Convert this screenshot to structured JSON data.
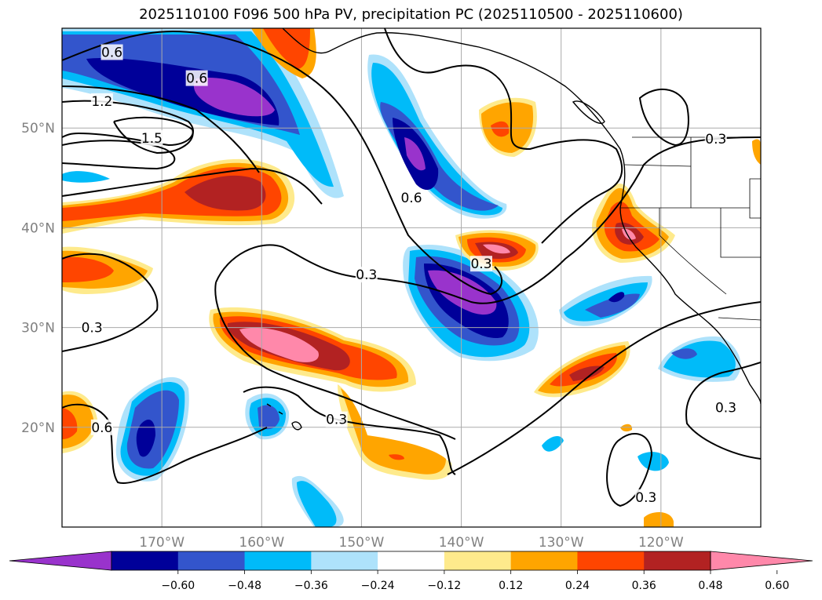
{
  "title": "2025110100 F096 500 hPa PV, precipitation PC (2025110500 - 2025110600)",
  "map": {
    "lon_range": [
      -180,
      -110
    ],
    "lat_range": [
      10,
      60
    ],
    "lon_ticks": [
      {
        "lon": -170,
        "label": "170°W"
      },
      {
        "lon": -160,
        "label": "160°W"
      },
      {
        "lon": -150,
        "label": "150°W"
      },
      {
        "lon": -140,
        "label": "140°W"
      },
      {
        "lon": -130,
        "label": "130°W"
      },
      {
        "lon": -120,
        "label": "120°W"
      }
    ],
    "lat_ticks": [
      {
        "lat": 50,
        "label": "50°N"
      },
      {
        "lat": 40,
        "label": "40°N"
      },
      {
        "lat": 30,
        "label": "30°N"
      },
      {
        "lat": 20,
        "label": "20°N"
      }
    ],
    "contour_labels": [
      {
        "text": "0.6",
        "lon": -175,
        "lat": 57.6
      },
      {
        "text": "1.2",
        "lon": -176,
        "lat": 52.7
      },
      {
        "text": "1.5",
        "lon": -171,
        "lat": 49
      },
      {
        "text": "0.6",
        "lon": -166.5,
        "lat": 55
      },
      {
        "text": "0.6",
        "lon": -145,
        "lat": 43
      },
      {
        "text": "0.3",
        "lon": -149.5,
        "lat": 35.3
      },
      {
        "text": "0.3",
        "lon": -138,
        "lat": 36.4
      },
      {
        "text": "0.3",
        "lon": -177,
        "lat": 30
      },
      {
        "text": "0.6",
        "lon": -176,
        "lat": 20
      },
      {
        "text": "0.3",
        "lon": -152.5,
        "lat": 20.8
      },
      {
        "text": "0.3",
        "lon": -114.5,
        "lat": 48.9
      },
      {
        "text": "0.3",
        "lon": -113.5,
        "lat": 22
      },
      {
        "text": "0.3",
        "lon": -121.5,
        "lat": 13
      }
    ]
  },
  "colorbar": {
    "colors": [
      "#9933cc",
      "#000099",
      "#3355cc",
      "#00bbf9",
      "#aee2fb",
      "#ffffff",
      "#feea8c",
      "#ffa500",
      "#ff4500",
      "#b22222",
      "#ff88aa"
    ],
    "tick_labels": [
      "−0.60",
      "−0.48",
      "−0.36",
      "−0.24",
      "−0.12",
      "0.12",
      "0.24",
      "0.36",
      "0.48",
      "0.60"
    ]
  }
}
